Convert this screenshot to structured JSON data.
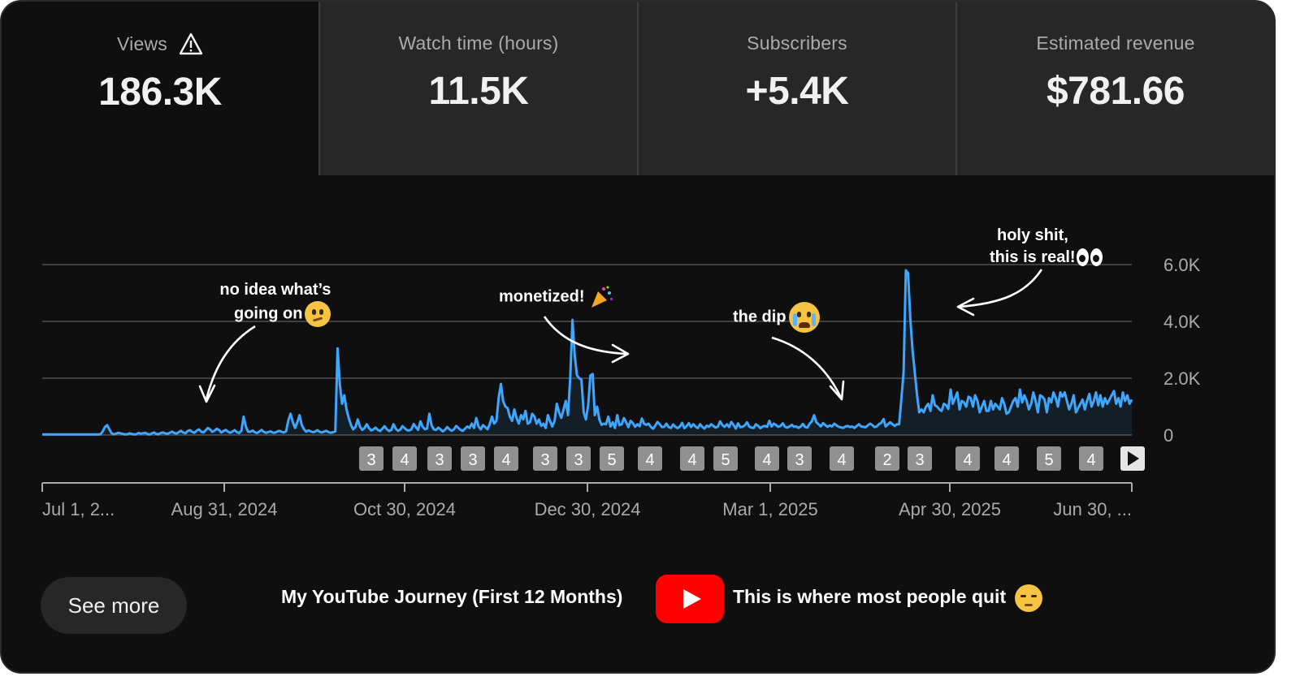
{
  "tabs": [
    {
      "label": "Views",
      "value": "186.3K",
      "active": true,
      "icon": "warning-icon"
    },
    {
      "label": "Watch time (hours)",
      "value": "11.5K",
      "active": false
    },
    {
      "label": "Subscribers",
      "value": "+5.4K",
      "active": false
    },
    {
      "label": "Estimated revenue",
      "value": "$781.66",
      "active": false
    }
  ],
  "chart_data": {
    "type": "line",
    "series": [
      {
        "values": [
          20,
          20,
          20,
          20,
          20,
          20,
          20,
          20,
          20,
          20,
          20,
          20,
          20,
          20,
          20,
          20,
          20,
          20,
          20,
          20,
          20,
          20,
          20,
          20,
          20,
          20,
          30,
          120,
          280,
          350,
          200,
          60,
          30,
          50,
          80,
          60,
          40,
          20,
          30,
          60,
          40,
          20,
          30,
          70,
          50,
          60,
          80,
          40,
          20,
          60,
          90,
          40,
          30,
          70,
          90,
          60,
          40,
          80,
          120,
          70,
          50,
          100,
          150,
          90,
          60,
          140,
          170,
          110,
          80,
          150,
          200,
          120,
          90,
          160,
          250,
          200,
          110,
          150,
          220,
          180,
          90,
          140,
          180,
          120,
          80,
          120,
          170,
          100,
          70,
          150,
          650,
          300,
          120,
          110,
          160,
          100,
          70,
          120,
          180,
          110,
          80,
          100,
          130,
          90,
          80,
          120,
          150,
          110,
          90,
          130,
          520,
          750,
          450,
          250,
          450,
          700,
          350,
          200,
          120,
          160,
          130,
          100,
          120,
          170,
          110,
          90,
          120,
          150,
          100,
          80,
          100,
          130,
          3050,
          1800,
          1100,
          1400,
          900,
          600,
          350,
          200,
          280,
          550,
          300,
          180,
          240,
          380,
          250,
          160,
          200,
          260,
          180,
          140,
          220,
          310,
          200,
          140,
          180,
          380,
          220,
          150,
          190,
          310,
          240,
          170,
          160,
          200,
          390,
          280,
          180,
          480,
          300,
          200,
          230,
          750,
          350,
          200,
          180,
          260,
          200,
          130,
          180,
          280,
          200,
          150,
          200,
          320,
          250,
          180,
          150,
          230,
          300,
          250,
          400,
          250,
          600,
          300,
          200,
          350,
          280,
          200,
          380,
          650,
          400,
          500,
          1300,
          1800,
          1200,
          1000,
          950,
          650,
          500,
          900,
          600,
          400,
          700,
          550,
          850,
          400,
          450,
          750,
          650,
          400,
          550,
          320,
          400,
          250,
          700,
          480,
          300,
          500,
          1100,
          800,
          600,
          900,
          1200,
          700,
          2000,
          4050,
          2800,
          2100,
          2000,
          1950,
          800,
          550,
          1050,
          2100,
          2150,
          700,
          1000,
          550,
          360,
          400,
          380,
          650,
          300,
          450,
          250,
          700,
          350,
          380,
          600,
          450,
          280,
          500,
          420,
          290,
          380,
          310,
          580,
          400,
          360,
          400,
          290,
          220,
          330,
          460,
          380,
          280,
          290,
          400,
          280,
          250,
          370,
          290,
          240,
          300,
          430,
          240,
          310,
          420,
          280,
          380,
          300,
          240,
          380,
          290,
          230,
          330,
          290,
          380,
          320,
          260,
          300,
          480,
          350,
          290,
          380,
          280,
          460,
          350,
          230,
          410,
          280,
          290,
          340,
          450,
          300,
          260,
          250,
          380,
          320,
          240,
          300,
          320,
          290,
          500,
          300,
          400,
          350,
          290,
          320,
          410,
          290,
          260,
          300,
          360,
          290,
          300,
          250,
          300,
          390,
          280,
          260,
          400,
          480,
          700,
          450,
          380,
          300,
          420,
          350,
          290,
          340,
          300,
          400,
          340,
          290,
          270,
          250,
          300,
          320,
          280,
          300,
          250,
          310,
          380,
          300,
          290,
          270,
          340,
          400,
          350,
          280,
          300,
          380,
          430,
          560,
          300,
          380,
          450,
          380,
          320,
          380,
          380,
          1280,
          2200,
          5800,
          5700,
          4100,
          3000,
          2200,
          1400,
          800,
          900,
          800,
          1000,
          1100,
          850,
          1400,
          1050,
          1000,
          900,
          850,
          1100,
          1050,
          920,
          1600,
          1100,
          1300,
          1500,
          900,
          1200,
          1150,
          1000,
          1350,
          1300,
          1000,
          1400,
          1200,
          800,
          1000,
          1200,
          850,
          850,
          1200,
          900,
          1100,
          1000,
          900,
          1300,
          1100,
          750,
          800,
          1000,
          1200,
          1300,
          1000,
          1600,
          1150,
          1400,
          1200,
          900,
          1100,
          1500,
          1200,
          800,
          1400,
          1350,
          1250,
          800,
          1300,
          1150,
          1500,
          1300,
          1000,
          1500,
          1350,
          1500,
          1200,
          900,
          1100,
          1400,
          800,
          950,
          1100,
          1250,
          900,
          1200,
          1450,
          1000,
          1200,
          1500,
          1050,
          1400,
          1000,
          1300,
          1100,
          1250,
          1400,
          1550,
          1100,
          1300,
          1000,
          1500,
          1200,
          1400,
          1100,
          1250
        ]
      }
    ],
    "x_tick_labels": [
      "Jul 1, 2...",
      "Aug 31, 2024",
      "Oct 30, 2024",
      "Dec 30, 2024",
      "Mar 1, 2025",
      "Apr 30, 2025",
      "Jun 30, ..."
    ],
    "y_tick_labels": [
      "6.0K",
      "4.0K",
      "2.0K",
      "0"
    ],
    "ylim": [
      0,
      6000
    ],
    "grid": true,
    "line_color": "#3ea6ff",
    "upload_markers": [
      "3",
      "4",
      "3",
      "3",
      "4",
      "3",
      "3",
      "5",
      "4",
      "4",
      "5",
      "4",
      "3",
      "4",
      "2",
      "3",
      "4",
      "4",
      "5",
      "4"
    ],
    "next_button": "play-icon"
  },
  "annotations": {
    "a1_line1": "no idea what’s",
    "a1_line2": "going on",
    "a2": "monetized!",
    "a3": "the dip",
    "a4_line1": "holy shit,",
    "a4_line2": "this is real!"
  },
  "footer": {
    "see_more": "See more",
    "title": "My YouTube Journey (First 12 Months)",
    "caption": "This is where most people quit"
  },
  "colors": {
    "background": "#0f0f0f",
    "tab_inactive": "#272727",
    "accent": "#3ea6ff",
    "youtube_red": "#ff0000"
  }
}
